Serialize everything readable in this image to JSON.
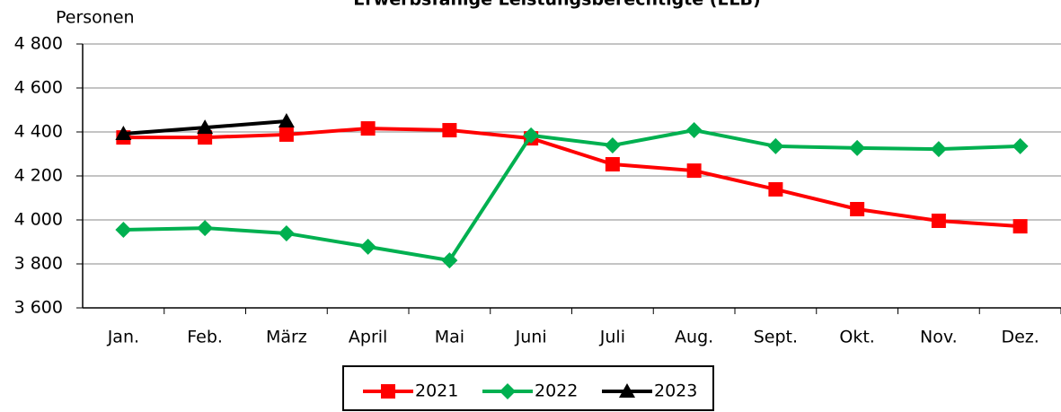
{
  "chart_data": {
    "type": "line",
    "title": "Erwerbsfähige Leistungsberechtigte (ELB)",
    "y_label": "Personen",
    "categories": [
      "Jan.",
      "Feb.",
      "März",
      "April",
      "Mai",
      "Juni",
      "Juli",
      "Aug.",
      "Sept.",
      "Okt.",
      "Nov.",
      "Dez."
    ],
    "series": [
      {
        "name": "2021",
        "color": "#ff0000",
        "marker": "square",
        "values": [
          4375,
          4375,
          4388,
          4416,
          4408,
          4371,
          4253,
          4224,
          4139,
          4049,
          3996,
          3971
        ]
      },
      {
        "name": "2022",
        "color": "#00b050",
        "marker": "diamond",
        "values": [
          3955,
          3963,
          3939,
          3878,
          3816,
          4384,
          4339,
          4408,
          4335,
          4327,
          4322,
          4335
        ]
      },
      {
        "name": "2023",
        "color": "#000000",
        "marker": "triangle",
        "values": [
          4392,
          4420,
          4449,
          null,
          null,
          null,
          null,
          null,
          null,
          null,
          null,
          null
        ]
      }
    ],
    "ylim": [
      3600,
      4800
    ],
    "yticks": [
      {
        "value": 3600,
        "label": "3 600"
      },
      {
        "value": 3800,
        "label": "3 800"
      },
      {
        "value": 4000,
        "label": "4 000"
      },
      {
        "value": 4200,
        "label": "4 200"
      },
      {
        "value": 4400,
        "label": "4 400"
      },
      {
        "value": 4600,
        "label": "4 600"
      },
      {
        "value": 4800,
        "label": "4 800"
      }
    ],
    "grid": true,
    "legend": "bottom"
  }
}
